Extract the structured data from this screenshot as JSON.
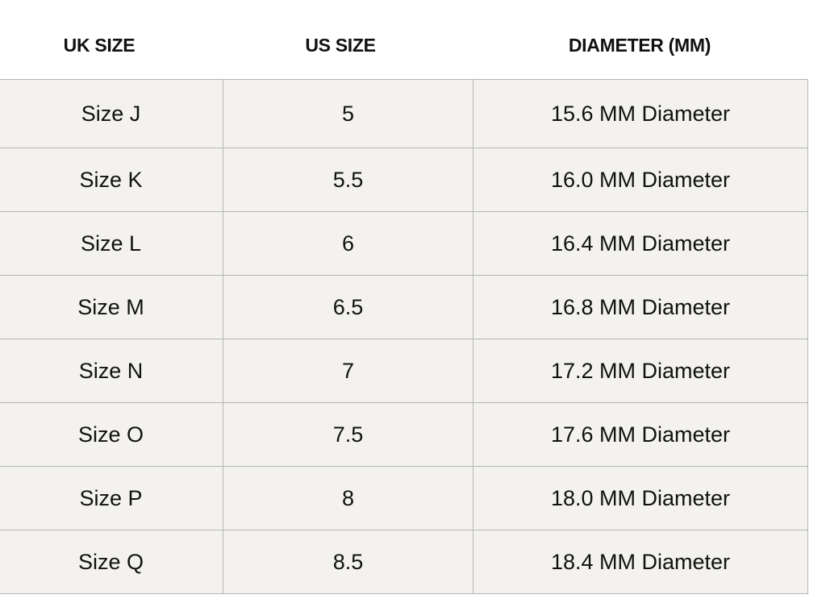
{
  "headers": {
    "uk": "UK SIZE",
    "us": "US SIZE",
    "diameter": "DIAMETER (MM)"
  },
  "rows": [
    {
      "uk": "Size J",
      "us": "5",
      "diameter": "15.6 MM Diameter"
    },
    {
      "uk": "Size K",
      "us": "5.5",
      "diameter": "16.0 MM Diameter"
    },
    {
      "uk": "Size L",
      "us": "6",
      "diameter": "16.4 MM Diameter"
    },
    {
      "uk": "Size M",
      "us": "6.5",
      "diameter": "16.8 MM Diameter"
    },
    {
      "uk": "Size N",
      "us": "7",
      "diameter": "17.2 MM Diameter"
    },
    {
      "uk": "Size O",
      "us": "7.5",
      "diameter": "17.6 MM Diameter"
    },
    {
      "uk": "Size P",
      "us": "8",
      "diameter": "18.0 MM Diameter"
    },
    {
      "uk": "Size Q",
      "us": "8.5",
      "diameter": "18.4 MM Diameter"
    }
  ]
}
